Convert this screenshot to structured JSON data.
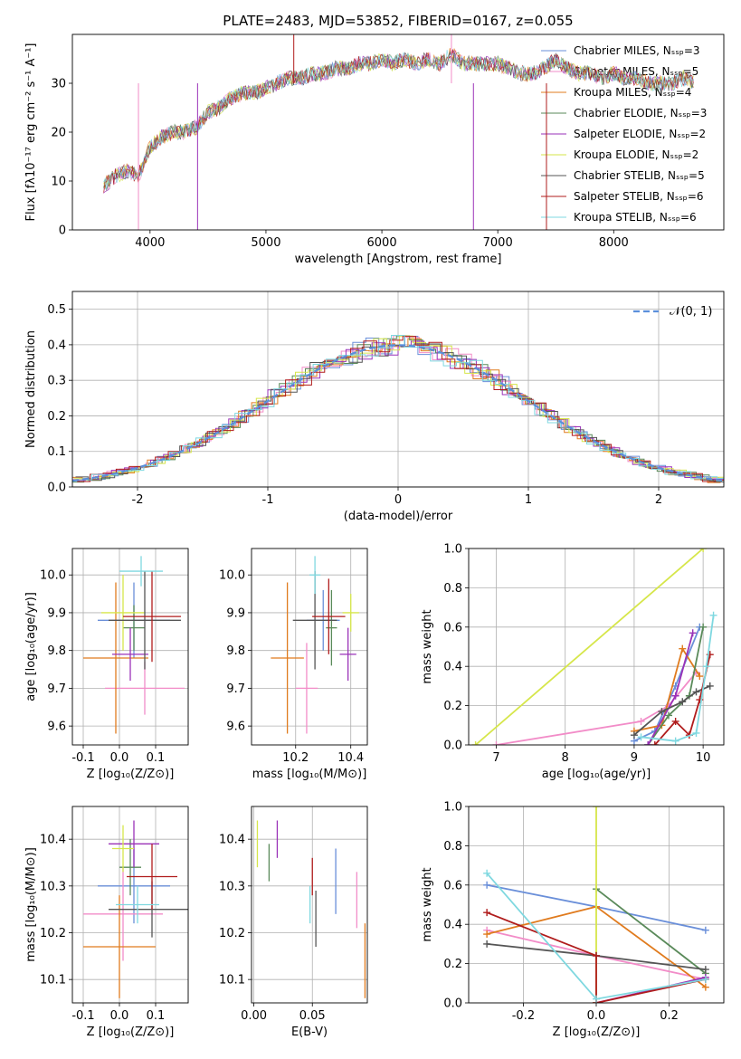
{
  "figure_title": "PLATE=2483, MJD=53852, FIBERID=0167, z=0.055",
  "series_colors": [
    "#6a8fd9",
    "#f28cc8",
    "#e07b1e",
    "#5a8a5a",
    "#9a32b8",
    "#d6e64a",
    "#555555",
    "#b01c1c",
    "#7fd8e0"
  ],
  "chart_data": [
    {
      "type": "line",
      "id": "spectrum",
      "title": "PLATE=2483, MJD=53852, FIBERID=0167, z=0.055",
      "xlabel": "wavelength [Angstrom, rest frame]",
      "ylabel": "Flux [fλ10⁻¹⁷ erg cm⁻² s⁻¹ A⁻¹]",
      "xlim": [
        3330,
        8950
      ],
      "ylim": [
        0,
        40
      ],
      "xticks": [
        4000,
        5000,
        6000,
        7000,
        8000
      ],
      "yticks": [
        0,
        10,
        20,
        30
      ],
      "grid": false,
      "legend_position": "upper-right",
      "legend": [
        "Chabrier MILES, Nₛₛₚ=3",
        "Salpeter MILES, Nₛₛₚ=5",
        "Kroupa MILES, Nₛₛₚ=4",
        "Chabrier ELODIE, Nₛₛₚ=3",
        "Salpeter ELODIE, Nₛₛₚ=2",
        "Kroupa ELODIE, Nₛₛₚ=2",
        "Chabrier STELIB, Nₛₛₚ=5",
        "Salpeter STELIB, Nₛₛₚ=6",
        "Kroupa STELIB, Nₛₛₚ=6"
      ],
      "continuum": {
        "x": [
          3600,
          3700,
          3800,
          3900,
          4000,
          4100,
          4200,
          4300,
          4400,
          4500,
          4600,
          4700,
          4800,
          4900,
          5000,
          5100,
          5200,
          5300,
          5400,
          5500,
          5600,
          5700,
          5800,
          5900,
          6000,
          6100,
          6200,
          6300,
          6400,
          6500,
          6600,
          6700,
          6800,
          6900,
          7000,
          7100,
          7200,
          7300,
          7400,
          7500,
          7600,
          7700,
          7800,
          7900,
          8000,
          8100,
          8200,
          8300,
          8400,
          8500,
          8600,
          8700
        ],
        "y": [
          9,
          11,
          12,
          11,
          17,
          19,
          20,
          20,
          21,
          24,
          25,
          27,
          28,
          28,
          29,
          30,
          31,
          31,
          32,
          32,
          33,
          33,
          34,
          34,
          35,
          34,
          35,
          34,
          35,
          34,
          36,
          34,
          34,
          34,
          34,
          33,
          32,
          32,
          33,
          35,
          33,
          32,
          32,
          31,
          32,
          31,
          31,
          30,
          30,
          30,
          31,
          30
        ]
      },
      "spikes": [
        {
          "x": 3900,
          "y": 0
        },
        {
          "x": 4410,
          "y": 0
        },
        {
          "x": 5240,
          "y": 40
        },
        {
          "x": 6600,
          "y": 40
        },
        {
          "x": 6790,
          "y": 0
        },
        {
          "x": 7420,
          "y": 0
        }
      ]
    },
    {
      "type": "line",
      "id": "residuals",
      "xlabel": "(data-model)/error",
      "ylabel": "Normed distribution",
      "xlim": [
        -2.5,
        2.5
      ],
      "ylim": [
        0,
        0.55
      ],
      "xticks": [
        -2,
        -1,
        0,
        1,
        2
      ],
      "yticks": [
        0.0,
        0.1,
        0.2,
        0.3,
        0.4,
        0.5
      ],
      "grid": true,
      "legend_position": "upper-right",
      "legend": [
        "𝒩(0, 1)"
      ],
      "gaussian": {
        "mean": 0,
        "sigma": 1
      },
      "histogram": {
        "bin_width": 0.1,
        "bins_start": -2.5,
        "values": [
          0.02,
          0.025,
          0.03,
          0.035,
          0.04,
          0.05,
          0.055,
          0.065,
          0.075,
          0.09,
          0.1,
          0.12,
          0.135,
          0.15,
          0.165,
          0.185,
          0.2,
          0.22,
          0.24,
          0.26,
          0.27,
          0.28,
          0.3,
          0.315,
          0.33,
          0.35,
          0.36,
          0.37,
          0.385,
          0.39,
          0.4,
          0.405,
          0.41,
          0.42,
          0.425,
          0.43,
          0.425,
          0.42,
          0.41,
          0.4,
          0.39,
          0.38,
          0.37,
          0.355,
          0.34,
          0.32,
          0.305,
          0.29,
          0.27
        ]
      }
    },
    {
      "type": "scatter",
      "id": "z-vs-age",
      "xlabel": "Z [log₁₀(Z/Z⊙)]",
      "ylabel": "age  [log₁₀(age/yr)]",
      "xlim": [
        -0.13,
        0.19
      ],
      "ylim": [
        9.55,
        10.07
      ],
      "xticks": [
        -0.1,
        0.0,
        0.1
      ],
      "yticks": [
        9.6,
        9.7,
        9.8,
        9.9,
        10.0
      ],
      "grid": true,
      "points": [
        {
          "x": 0.04,
          "y": 9.88,
          "xerr": 0.1,
          "yerr": 0.1
        },
        {
          "x": 0.07,
          "y": 9.7,
          "xerr": 0.11,
          "yerr": 0.07
        },
        {
          "x": -0.01,
          "y": 9.78,
          "xerr": 0.09,
          "yerr": 0.2
        },
        {
          "x": 0.04,
          "y": 9.86,
          "xerr": 0.03,
          "yerr": 0.06
        },
        {
          "x": 0.03,
          "y": 9.79,
          "xerr": 0.05,
          "yerr": 0.07
        },
        {
          "x": 0.01,
          "y": 9.9,
          "xerr": 0.06,
          "yerr": 0.1
        },
        {
          "x": 0.07,
          "y": 9.88,
          "xerr": 0.1,
          "yerr": 0.13
        },
        {
          "x": 0.09,
          "y": 9.89,
          "xerr": 0.08,
          "yerr": 0.12
        },
        {
          "x": 0.06,
          "y": 10.01,
          "xerr": 0.06,
          "yerr": 0.04
        }
      ]
    },
    {
      "type": "scatter",
      "id": "mass-vs-age",
      "xlabel": "mass [log₁₀(M/M⊙)]",
      "ylabel": "",
      "xlim": [
        10.04,
        10.46
      ],
      "ylim": [
        9.55,
        10.07
      ],
      "xticks": [
        10.2,
        10.4
      ],
      "yticks": [
        9.6,
        9.7,
        9.8,
        9.9,
        10.0
      ],
      "grid": true,
      "points": [
        {
          "x": 10.3,
          "y": 9.88,
          "xerr": 0.06,
          "yerr": 0.08
        },
        {
          "x": 10.24,
          "y": 9.7,
          "xerr": 0.04,
          "yerr": 0.12
        },
        {
          "x": 10.17,
          "y": 9.78,
          "xerr": 0.06,
          "yerr": 0.2
        },
        {
          "x": 10.33,
          "y": 9.86,
          "xerr": 0.02,
          "yerr": 0.1
        },
        {
          "x": 10.39,
          "y": 9.79,
          "xerr": 0.03,
          "yerr": 0.07
        },
        {
          "x": 10.4,
          "y": 9.9,
          "xerr": 0.03,
          "yerr": 0.05
        },
        {
          "x": 10.27,
          "y": 9.88,
          "xerr": 0.08,
          "yerr": 0.13
        },
        {
          "x": 10.32,
          "y": 9.89,
          "xerr": 0.06,
          "yerr": 0.1
        },
        {
          "x": 10.27,
          "y": 10.0,
          "xerr": 0.02,
          "yerr": 0.05
        }
      ]
    },
    {
      "type": "line",
      "id": "age-vs-weight",
      "xlabel": "age  [log₁₀(age/yr)]",
      "ylabel": "mass weight",
      "xlim": [
        6.6,
        10.3
      ],
      "ylim": [
        0,
        1.0
      ],
      "xticks": [
        7,
        8,
        9,
        10
      ],
      "yticks": [
        0.0,
        0.2,
        0.4,
        0.6,
        0.8,
        1.0
      ],
      "grid": true,
      "lines": [
        {
          "x": [
            9.0,
            9.3,
            9.6,
            9.95
          ],
          "y": [
            0.02,
            0.07,
            0.3,
            0.6
          ]
        },
        {
          "x": [
            7.0,
            9.1,
            9.5,
            9.9
          ],
          "y": [
            0.0,
            0.12,
            0.2,
            0.37
          ]
        },
        {
          "x": [
            9.0,
            9.4,
            9.7,
            9.95
          ],
          "y": [
            0.07,
            0.1,
            0.49,
            0.35
          ]
        },
        {
          "x": [
            9.2,
            9.5,
            9.8,
            10.0
          ],
          "y": [
            0.0,
            0.15,
            0.25,
            0.6
          ]
        },
        {
          "x": [
            9.2,
            9.6,
            9.85
          ],
          "y": [
            0.0,
            0.25,
            0.57
          ]
        },
        {
          "x": [
            6.7,
            10.0
          ],
          "y": [
            0.0,
            1.0
          ]
        },
        {
          "x": [
            9.0,
            9.4,
            9.7,
            9.9,
            10.1
          ],
          "y": [
            0.05,
            0.17,
            0.22,
            0.27,
            0.3
          ]
        },
        {
          "x": [
            9.3,
            9.6,
            9.8,
            9.95,
            10.1
          ],
          "y": [
            0.0,
            0.12,
            0.05,
            0.23,
            0.46
          ]
        },
        {
          "x": [
            9.1,
            9.6,
            9.9,
            10.05,
            10.15
          ],
          "y": [
            0.04,
            0.02,
            0.06,
            0.4,
            0.66
          ]
        }
      ]
    },
    {
      "type": "scatter",
      "id": "z-vs-mass",
      "xlabel": "Z [log₁₀(Z/Z⊙)]",
      "ylabel": "mass [log₁₀(M/M⊙)]",
      "xlim": [
        -0.13,
        0.19
      ],
      "ylim": [
        10.05,
        10.47
      ],
      "xticks": [
        -0.1,
        0.0,
        0.1
      ],
      "yticks": [
        10.1,
        10.2,
        10.3,
        10.4
      ],
      "grid": true,
      "points": [
        {
          "x": 0.04,
          "y": 10.3,
          "xerr": 0.1,
          "yerr": 0.08
        },
        {
          "x": 0.01,
          "y": 10.24,
          "xerr": 0.11,
          "yerr": 0.1
        },
        {
          "x": 0.0,
          "y": 10.17,
          "xerr": 0.1,
          "yerr": 0.11
        },
        {
          "x": 0.03,
          "y": 10.34,
          "xerr": 0.03,
          "yerr": 0.06
        },
        {
          "x": 0.04,
          "y": 10.39,
          "xerr": 0.07,
          "yerr": 0.05
        },
        {
          "x": 0.01,
          "y": 10.38,
          "xerr": 0.03,
          "yerr": 0.05
        },
        {
          "x": 0.09,
          "y": 10.25,
          "xerr": 0.12,
          "yerr": 0.06
        },
        {
          "x": 0.09,
          "y": 10.32,
          "xerr": 0.07,
          "yerr": 0.07
        },
        {
          "x": 0.05,
          "y": 10.26,
          "xerr": 0.06,
          "yerr": 0.04
        }
      ]
    },
    {
      "type": "scatter",
      "id": "ebv-vs-mass",
      "xlabel": "E(B-V)",
      "ylabel": "",
      "xlim": [
        -0.002,
        0.097
      ],
      "ylim": [
        10.05,
        10.47
      ],
      "xticks": [
        0.0,
        0.05
      ],
      "yticks": [
        10.1,
        10.2,
        10.3,
        10.4
      ],
      "grid": true,
      "points": [
        {
          "x": 0.07,
          "y": 10.31,
          "xerr": 0,
          "yerr": 0.07
        },
        {
          "x": 0.088,
          "y": 10.27,
          "xerr": 0,
          "yerr": 0.06
        },
        {
          "x": 0.095,
          "y": 10.14,
          "xerr": 0,
          "yerr": 0.08
        },
        {
          "x": 0.013,
          "y": 10.35,
          "xerr": 0,
          "yerr": 0.04
        },
        {
          "x": 0.02,
          "y": 10.4,
          "xerr": 0,
          "yerr": 0.04
        },
        {
          "x": 0.003,
          "y": 10.39,
          "xerr": 0,
          "yerr": 0.05
        },
        {
          "x": 0.053,
          "y": 10.23,
          "xerr": 0,
          "yerr": 0.06
        },
        {
          "x": 0.05,
          "y": 10.32,
          "xerr": 0,
          "yerr": 0.04
        },
        {
          "x": 0.048,
          "y": 10.26,
          "xerr": 0,
          "yerr": 0.04
        }
      ]
    },
    {
      "type": "line",
      "id": "z-vs-weight",
      "xlabel": "Z [log₁₀(Z/Z⊙)]",
      "ylabel": "mass weight",
      "xlim": [
        -0.35,
        0.35
      ],
      "ylim": [
        0,
        1.0
      ],
      "xticks": [
        -0.2,
        0.0,
        0.2
      ],
      "yticks": [
        0.0,
        0.2,
        0.4,
        0.6,
        0.8,
        1.0
      ],
      "grid": true,
      "lines": [
        {
          "x": [
            -0.3,
            0.0,
            0.3
          ],
          "y": [
            0.6,
            0.49,
            0.37
          ]
        },
        {
          "x": [
            -0.3,
            0.0,
            0.3
          ],
          "y": [
            0.37,
            0.24,
            0.12
          ]
        },
        {
          "x": [
            -0.3,
            0.0,
            0.3
          ],
          "y": [
            0.35,
            0.49,
            0.08
          ]
        },
        {
          "x": [
            0.0,
            0.3
          ],
          "y": [
            0.58,
            0.15
          ]
        },
        {
          "x": [
            0.0,
            0.3
          ],
          "y": [
            0.0,
            0.13
          ]
        },
        {
          "x": [
            0.0,
            0.0
          ],
          "y": [
            0.0,
            1.0
          ]
        },
        {
          "x": [
            -0.3,
            0.0,
            0.3
          ],
          "y": [
            0.3,
            0.24,
            0.17
          ]
        },
        {
          "x": [
            -0.3,
            0.0,
            0.0,
            0.3
          ],
          "y": [
            0.46,
            0.24,
            0.0,
            0.12
          ]
        },
        {
          "x": [
            -0.3,
            0.0,
            0.3
          ],
          "y": [
            0.66,
            0.02,
            0.12
          ]
        }
      ]
    }
  ]
}
